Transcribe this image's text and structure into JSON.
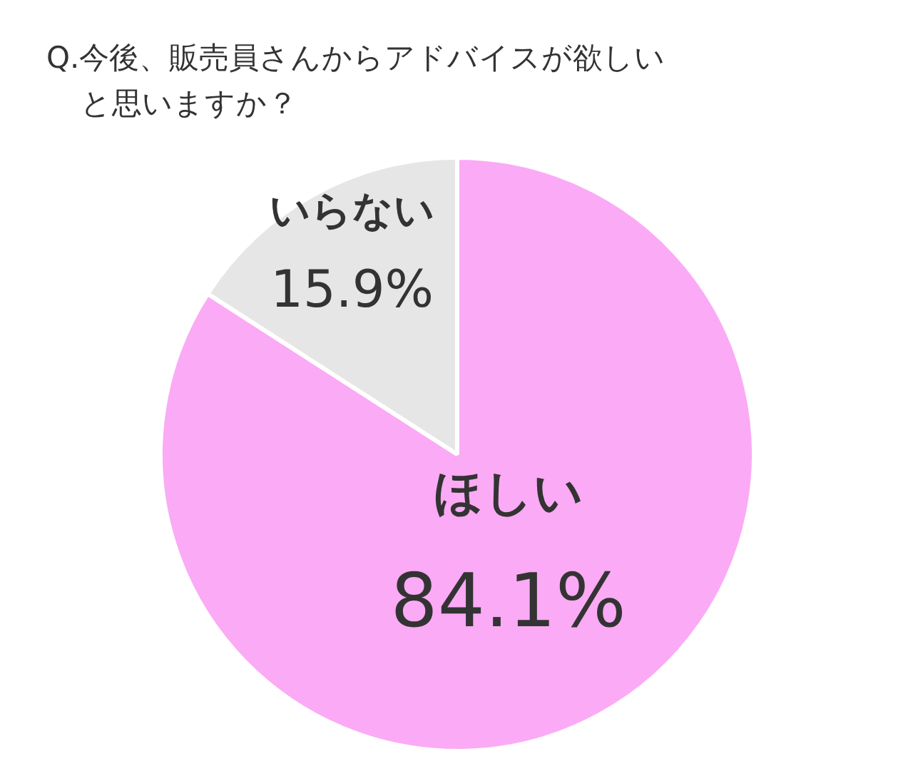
{
  "chart_data": {
    "type": "pie",
    "title": "Q.今後、販売員さんからアドバイスが欲しいと思いますか？",
    "categories": [
      "ほしい",
      "いらない"
    ],
    "values": [
      84.1,
      15.9
    ],
    "colors": [
      "#fbaaf5",
      "#e6e6e6"
    ],
    "value_labels": [
      "84.1%",
      "15.9%"
    ]
  }
}
